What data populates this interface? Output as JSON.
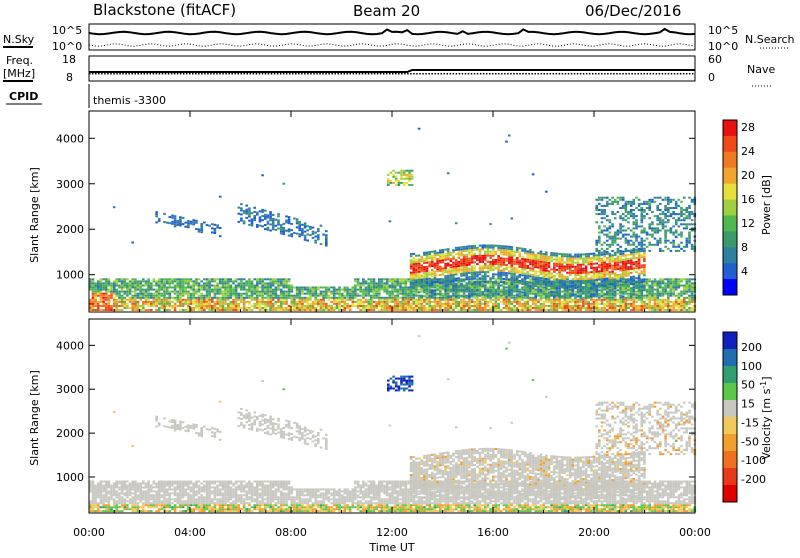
{
  "header": {
    "station": "Blackstone (fitACF)",
    "beam": "Beam 20",
    "date": "06/Dec/2016"
  },
  "top_panel_labels": {
    "nsky": "N.Sky",
    "nsearch": "N.Search",
    "freq": "Freq.",
    "freq_unit": "[MHz]",
    "nave": "Nave",
    "cpid": "CPID",
    "cpid_value": "themis -3300",
    "noise_ticks_left": [
      "10^5",
      "10^0"
    ],
    "noise_ticks_right": [
      "10^5",
      "10^0"
    ],
    "freq_ticks": [
      "18",
      "8"
    ],
    "nave_ticks": [
      "60",
      "0"
    ]
  },
  "chart_data": [
    {
      "type": "heatmap",
      "name": "power",
      "ylabel": "Slant Range [km]",
      "yticks": [
        1000,
        2000,
        3000,
        4000
      ],
      "ylim": [
        180,
        4600
      ],
      "xlim": [
        0,
        24
      ],
      "colorbar_label": "Power [dB]",
      "colorbar_ticks": [
        "4",
        "8",
        "12",
        "16",
        "20",
        "24",
        "28"
      ],
      "colorbar_colors": [
        "#0000ff",
        "#1f5fcf",
        "#2f7f9f",
        "#3c9a6a",
        "#4fb84f",
        "#9fd03f",
        "#e8e03a",
        "#f2a52a",
        "#f07a20",
        "#f04a18",
        "#e81010"
      ],
      "features": [
        {
          "label": "near-range E region echoes",
          "x_range": [
            0,
            24
          ],
          "range_km": [
            200,
            900
          ],
          "peak_db": 28
        },
        {
          "label": "F region band",
          "x_range": [
            12.7,
            22
          ],
          "range_km": [
            900,
            1500
          ],
          "peak_db": 28
        },
        {
          "label": "evening scatter",
          "x_range": [
            6,
            9
          ],
          "range_km": [
            1800,
            2700
          ],
          "peak_db": 8
        }
      ]
    },
    {
      "type": "heatmap",
      "name": "velocity",
      "ylabel": "Slant Range [km]",
      "yticks": [
        1000,
        2000,
        3000,
        4000
      ],
      "ylim": [
        180,
        4600
      ],
      "xlim": [
        0,
        24
      ],
      "xlabel": "Time UT",
      "xtick_labels": [
        "00:00",
        "04:00",
        "08:00",
        "12:00",
        "16:00",
        "20:00",
        "00:00"
      ],
      "colorbar_label": "Velocity [m s",
      "colorbar_label_sup": "-1",
      "colorbar_label_end": "]",
      "colorbar_ticks": [
        "200",
        "100",
        "50",
        "15",
        "-15",
        "-50",
        "-100",
        "-200"
      ],
      "colorbar_colors": [
        "#1020c0",
        "#1f6fb0",
        "#2f9f6f",
        "#5cc84a",
        "#c8c8c0",
        "#f2c85a",
        "#f0a02a",
        "#f07020",
        "#e83818",
        "#e00000"
      ]
    }
  ]
}
